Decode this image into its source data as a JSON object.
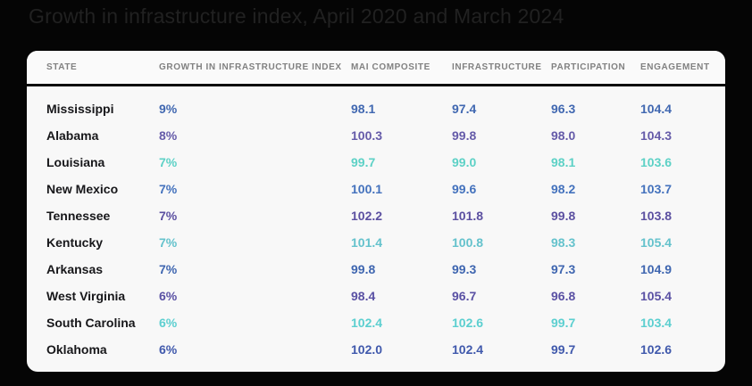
{
  "title": "Growth in infrastructure index, April 2020 and March 2024",
  "colors": {
    "page_bg": "#050505",
    "title_text": "#212121",
    "card_bg": "#f8f8f8",
    "header_text": "#818181",
    "divider": "#0d0d0d",
    "state_text": "#17171a"
  },
  "chart_data": {
    "type": "table",
    "title": "Growth in infrastructure index, April 2020 and March 2024",
    "columns": [
      "STATE",
      "GROWTH IN INFRASTRUCTURE INDEX",
      "MAI COMPOSITE",
      "INFRASTRUCTURE",
      "PARTICIPATION",
      "ENGAGEMENT"
    ],
    "rows": [
      {
        "state": "Mississippi",
        "growth": "9%",
        "mai_composite": "98.1",
        "infrastructure": "97.4",
        "participation": "96.3",
        "engagement": "104.4",
        "value_color": "#4168b1"
      },
      {
        "state": "Alabama",
        "growth": "8%",
        "mai_composite": "100.3",
        "infrastructure": "99.8",
        "participation": "98.0",
        "engagement": "104.3",
        "value_color": "#655ba9"
      },
      {
        "state": "Louisiana",
        "growth": "7%",
        "mai_composite": "99.7",
        "infrastructure": "99.0",
        "participation": "98.1",
        "engagement": "103.6",
        "value_color": "#5dd1c6"
      },
      {
        "state": "New Mexico",
        "growth": "7%",
        "mai_composite": "100.1",
        "infrastructure": "99.6",
        "participation": "98.2",
        "engagement": "103.7",
        "value_color": "#4472bd"
      },
      {
        "state": "Tennessee",
        "growth": "7%",
        "mai_composite": "102.2",
        "infrastructure": "101.8",
        "participation": "99.8",
        "engagement": "103.8",
        "value_color": "#5c50a1"
      },
      {
        "state": "Kentucky",
        "growth": "7%",
        "mai_composite": "101.4",
        "infrastructure": "100.8",
        "participation": "98.3",
        "engagement": "105.4",
        "value_color": "#64c2cc"
      },
      {
        "state": "Arkansas",
        "growth": "7%",
        "mai_composite": "99.8",
        "infrastructure": "99.3",
        "participation": "97.3",
        "engagement": "104.9",
        "value_color": "#3f66b0"
      },
      {
        "state": "West Virginia",
        "growth": "6%",
        "mai_composite": "98.4",
        "infrastructure": "96.7",
        "participation": "96.8",
        "engagement": "105.4",
        "value_color": "#5a51a4"
      },
      {
        "state": "South Carolina",
        "growth": "6%",
        "mai_composite": "102.4",
        "infrastructure": "102.6",
        "participation": "99.7",
        "engagement": "103.4",
        "value_color": "#5ccfd0"
      },
      {
        "state": "Oklahoma",
        "growth": "6%",
        "mai_composite": "102.0",
        "infrastructure": "102.4",
        "participation": "99.7",
        "engagement": "102.6",
        "value_color": "#4059ac"
      }
    ]
  }
}
